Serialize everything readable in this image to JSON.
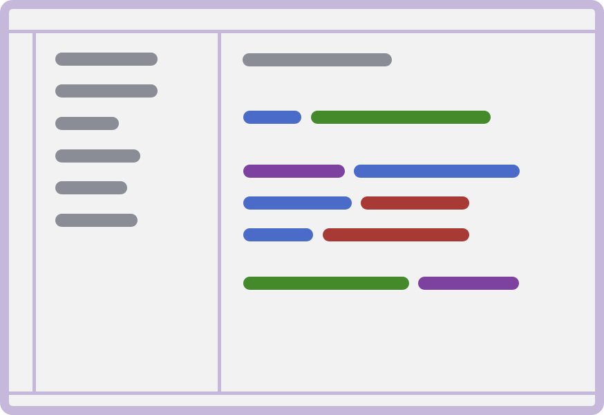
{
  "colors": {
    "frame": "#c5b8da",
    "background": "#f2f2f3",
    "placeholder_gray": "#8a8c96",
    "blue": "#4a6bc8",
    "green": "#448a2a",
    "purple": "#7d42a0",
    "red": "#a83a36"
  },
  "sidebar": {
    "item_count": 6
  },
  "editor": {
    "lines": [
      [
        "gray"
      ],
      [
        "blue",
        "green"
      ],
      [
        "purple",
        "blue"
      ],
      [
        "blue",
        "red"
      ],
      [
        "blue",
        "red"
      ],
      [
        "green",
        "purple"
      ]
    ]
  }
}
